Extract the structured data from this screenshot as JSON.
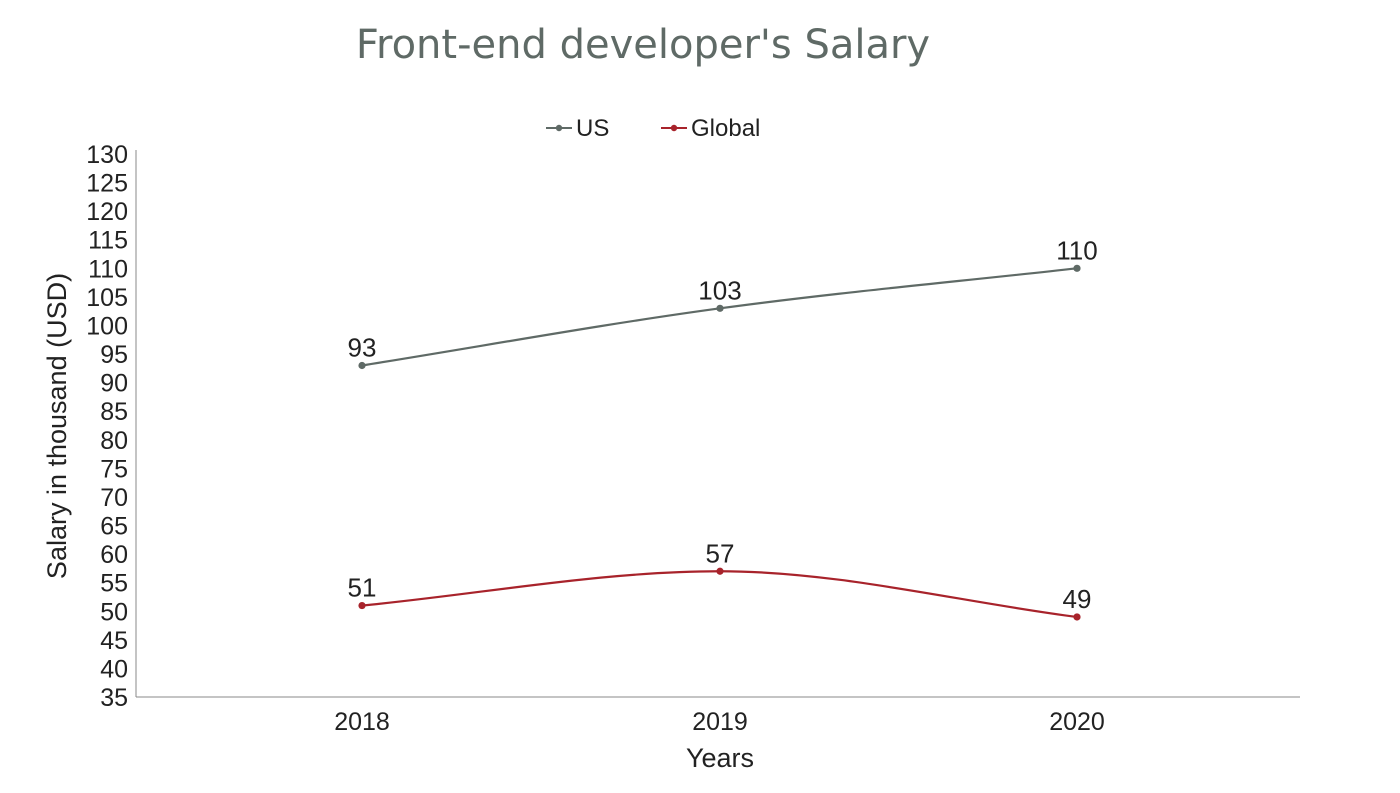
{
  "chart_data": {
    "type": "line",
    "title": "Front-end developer's Salary",
    "xlabel": "Years",
    "ylabel": "Salary in thousand (USD)",
    "categories": [
      "2018",
      "2019",
      "2020"
    ],
    "ylim": [
      35,
      130
    ],
    "yticks": [
      35,
      40,
      45,
      50,
      55,
      60,
      65,
      70,
      75,
      80,
      85,
      90,
      95,
      100,
      105,
      110,
      115,
      120,
      125,
      130
    ],
    "smooth": true,
    "grid": false,
    "legend_position": "top-center",
    "series": [
      {
        "name": "US",
        "color": "#5f6a66",
        "values": [
          93,
          103,
          110
        ]
      },
      {
        "name": "Global",
        "color": "#a8232b",
        "values": [
          51,
          57,
          49
        ]
      }
    ]
  }
}
